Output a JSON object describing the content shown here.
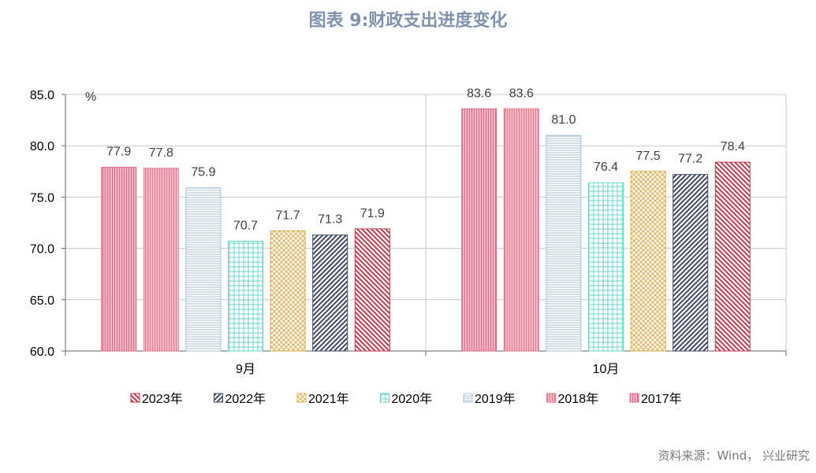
{
  "chart_data": {
    "type": "bar",
    "title": "图表 9:财政支出进度变化",
    "ylabel": "%",
    "xlabel": "",
    "categories": [
      "9月",
      "10月"
    ],
    "ylim": [
      60,
      85
    ],
    "yticks": [
      "60.0",
      "65.0",
      "70.0",
      "75.0",
      "80.0",
      "85.0"
    ],
    "grid": true,
    "legend_position": "bottom",
    "bar_order": [
      "2017年",
      "2018年",
      "2019年",
      "2020年",
      "2021年",
      "2022年",
      "2023年"
    ],
    "series": [
      {
        "name": "2023年",
        "values": [
          71.9,
          78.4
        ],
        "color": "#c0384a",
        "pattern": "diagonal-down"
      },
      {
        "name": "2022年",
        "values": [
          71.3,
          77.2
        ],
        "color": "#3e4866",
        "pattern": "diagonal-up"
      },
      {
        "name": "2021年",
        "values": [
          71.7,
          77.5
        ],
        "color": "#e0ac4c",
        "pattern": "crosshatch"
      },
      {
        "name": "2020年",
        "values": [
          70.7,
          76.4
        ],
        "color": "#66d4cc",
        "pattern": "grid"
      },
      {
        "name": "2019年",
        "values": [
          75.9,
          81.0
        ],
        "color": "#a6c2d8",
        "pattern": "horizontal"
      },
      {
        "name": "2018年",
        "values": [
          77.8,
          83.6
        ],
        "color": "#e8778f",
        "pattern": "vertical"
      },
      {
        "name": "2017年",
        "values": [
          77.9,
          83.6
        ],
        "color": "#e06d88",
        "pattern": "vertical"
      }
    ]
  },
  "source": "资料来源：Wind， 兴业研究"
}
